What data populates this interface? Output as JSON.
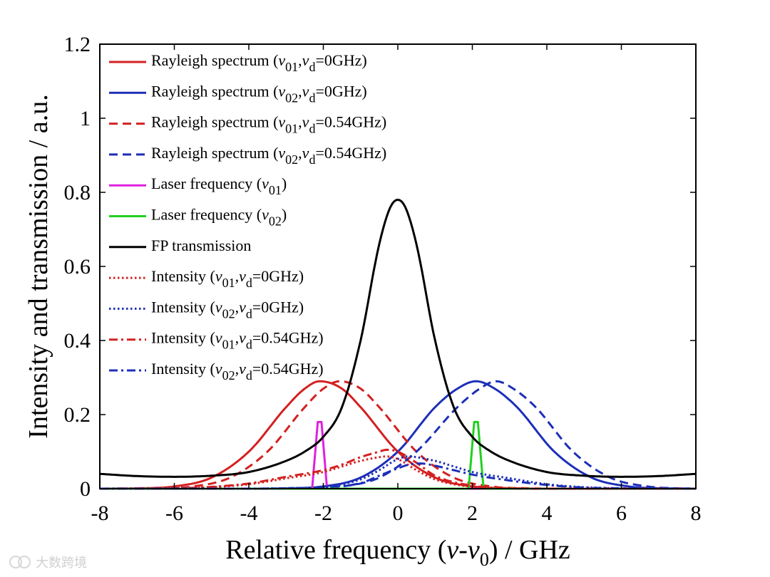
{
  "chart_data": {
    "type": "line",
    "title": "",
    "xlabel": "Relative frequency (ν-ν0) / GHz",
    "xlabel_parts": {
      "main": "Relative frequency (",
      "nu": "ν",
      "dash": "-ν",
      "sub": "0",
      "tail": ") / GHz"
    },
    "ylabel": "Intensity and transmission / a.u.",
    "xlim": [
      -8,
      8
    ],
    "ylim": [
      0,
      1.2
    ],
    "xticks": [
      -8,
      -6,
      -4,
      -2,
      0,
      2,
      4,
      6,
      8
    ],
    "xtick_labels": [
      "-8",
      "-6",
      "-4",
      "-2",
      "0",
      "2",
      "4",
      "6",
      "8"
    ],
    "yticks": [
      0,
      0.2,
      0.4,
      0.6,
      0.8,
      1,
      1.2
    ],
    "ytick_labels": [
      "0",
      "0.2",
      "0.4",
      "0.6",
      "0.8",
      "1",
      "1.2"
    ],
    "grid": false,
    "legend_position": "top-left",
    "series": [
      {
        "name": "Rayleigh spectrum (ν01,νd=0GHz)",
        "color": "#d42020",
        "dash": "solid",
        "points": [
          [
            -8,
            0
          ],
          [
            -7,
            0.001
          ],
          [
            -6,
            0.006
          ],
          [
            -5,
            0.03
          ],
          [
            -4,
            0.1
          ],
          [
            -3,
            0.22
          ],
          [
            -2.5,
            0.27
          ],
          [
            -2.1,
            0.29
          ],
          [
            -1.5,
            0.27
          ],
          [
            -1,
            0.22
          ],
          [
            0,
            0.1
          ],
          [
            1,
            0.03
          ],
          [
            2,
            0.006
          ],
          [
            3,
            0.001
          ],
          [
            4,
            0
          ],
          [
            8,
            0
          ]
        ]
      },
      {
        "name": "Rayleigh spectrum (ν02,νd=0GHz)",
        "color": "#1c2fb8",
        "dash": "solid",
        "points": [
          [
            -8,
            0
          ],
          [
            -4,
            0
          ],
          [
            -3,
            0.001
          ],
          [
            -2,
            0.006
          ],
          [
            -1,
            0.03
          ],
          [
            0,
            0.1
          ],
          [
            1,
            0.22
          ],
          [
            1.6,
            0.27
          ],
          [
            2.1,
            0.29
          ],
          [
            2.6,
            0.27
          ],
          [
            3.2,
            0.22
          ],
          [
            4.2,
            0.1
          ],
          [
            5.2,
            0.03
          ],
          [
            6.2,
            0.006
          ],
          [
            7,
            0.001
          ],
          [
            8,
            0
          ]
        ]
      },
      {
        "name": "Rayleigh spectrum (ν01,νd=0.54GHz)",
        "color": "#d42020",
        "dash": "dashed",
        "points": [
          [
            -8,
            0
          ],
          [
            -6.5,
            0.001
          ],
          [
            -5.5,
            0.006
          ],
          [
            -4.5,
            0.03
          ],
          [
            -3.5,
            0.1
          ],
          [
            -2.5,
            0.22
          ],
          [
            -2,
            0.27
          ],
          [
            -1.56,
            0.29
          ],
          [
            -1,
            0.27
          ],
          [
            -0.5,
            0.22
          ],
          [
            0.5,
            0.1
          ],
          [
            1.5,
            0.03
          ],
          [
            2.5,
            0.006
          ],
          [
            3.5,
            0.001
          ],
          [
            4.5,
            0
          ],
          [
            8,
            0
          ]
        ]
      },
      {
        "name": "Rayleigh spectrum (ν02,νd=0.54GHz)",
        "color": "#1c2fb8",
        "dash": "dashed",
        "points": [
          [
            -8,
            0
          ],
          [
            -3.5,
            0
          ],
          [
            -2.5,
            0.001
          ],
          [
            -1.5,
            0.006
          ],
          [
            -0.5,
            0.03
          ],
          [
            0.5,
            0.1
          ],
          [
            1.6,
            0.22
          ],
          [
            2.2,
            0.27
          ],
          [
            2.64,
            0.29
          ],
          [
            3.1,
            0.27
          ],
          [
            3.7,
            0.22
          ],
          [
            4.7,
            0.1
          ],
          [
            5.7,
            0.03
          ],
          [
            6.7,
            0.006
          ],
          [
            7.5,
            0.001
          ],
          [
            8,
            0
          ]
        ]
      },
      {
        "name": "Laser frequency (ν01)",
        "color": "#e020e0",
        "dash": "solid",
        "points": [
          [
            -8,
            0
          ],
          [
            -2.3,
            0
          ],
          [
            -2.15,
            0.18
          ],
          [
            -2.05,
            0.18
          ],
          [
            -1.9,
            0
          ],
          [
            8,
            0
          ]
        ]
      },
      {
        "name": "Laser frequency (ν02)",
        "color": "#20d020",
        "dash": "solid",
        "points": [
          [
            -8,
            0
          ],
          [
            1.9,
            0
          ],
          [
            2.05,
            0.18
          ],
          [
            2.15,
            0.18
          ],
          [
            2.3,
            0
          ],
          [
            8,
            0
          ]
        ]
      },
      {
        "name": "FP transmission",
        "color": "#000000",
        "dash": "solid",
        "points": [
          [
            -8,
            0.04
          ],
          [
            -7,
            0.034
          ],
          [
            -6,
            0.032
          ],
          [
            -5,
            0.035
          ],
          [
            -4,
            0.045
          ],
          [
            -3,
            0.075
          ],
          [
            -2.5,
            0.1
          ],
          [
            -2,
            0.14
          ],
          [
            -1.5,
            0.22
          ],
          [
            -1,
            0.4
          ],
          [
            -0.5,
            0.66
          ],
          [
            -0.2,
            0.76
          ],
          [
            0,
            0.78
          ],
          [
            0.2,
            0.76
          ],
          [
            0.5,
            0.66
          ],
          [
            1,
            0.4
          ],
          [
            1.5,
            0.22
          ],
          [
            2,
            0.14
          ],
          [
            2.5,
            0.1
          ],
          [
            3,
            0.075
          ],
          [
            4,
            0.045
          ],
          [
            5,
            0.035
          ],
          [
            6,
            0.032
          ],
          [
            7,
            0.034
          ],
          [
            8,
            0.04
          ]
        ]
      },
      {
        "name": "Intensity (ν01,νd=0GHz)",
        "color": "#d42020",
        "dash": "dotted",
        "points": [
          [
            -8,
            0
          ],
          [
            -6,
            0.001
          ],
          [
            -5,
            0.004
          ],
          [
            -4,
            0.012
          ],
          [
            -3,
            0.028
          ],
          [
            -2,
            0.045
          ],
          [
            -1.5,
            0.06
          ],
          [
            -1,
            0.075
          ],
          [
            -0.5,
            0.085
          ],
          [
            -0.3,
            0.087
          ],
          [
            0,
            0.08
          ],
          [
            0.5,
            0.05
          ],
          [
            1,
            0.025
          ],
          [
            2,
            0.005
          ],
          [
            3,
            0.001
          ],
          [
            4,
            0
          ],
          [
            8,
            0
          ]
        ]
      },
      {
        "name": "Intensity (ν02,νd=0GHz)",
        "color": "#1c2fb8",
        "dash": "dotted",
        "points": [
          [
            -8,
            0
          ],
          [
            -4,
            0
          ],
          [
            -3,
            0.001
          ],
          [
            -2,
            0.005
          ],
          [
            -1,
            0.025
          ],
          [
            -0.5,
            0.05
          ],
          [
            0,
            0.08
          ],
          [
            0.3,
            0.087
          ],
          [
            0.5,
            0.085
          ],
          [
            1,
            0.075
          ],
          [
            1.5,
            0.06
          ],
          [
            2,
            0.045
          ],
          [
            3,
            0.028
          ],
          [
            4,
            0.012
          ],
          [
            5,
            0.004
          ],
          [
            6,
            0.001
          ],
          [
            8,
            0
          ]
        ]
      },
      {
        "name": "Intensity (ν01,νd=0.54GHz)",
        "color": "#d42020",
        "dash": "dashdot",
        "points": [
          [
            -8,
            0
          ],
          [
            -6,
            0.001
          ],
          [
            -5,
            0.005
          ],
          [
            -4,
            0.014
          ],
          [
            -3,
            0.032
          ],
          [
            -2,
            0.05
          ],
          [
            -1.5,
            0.065
          ],
          [
            -1,
            0.085
          ],
          [
            -0.5,
            0.1
          ],
          [
            -0.3,
            0.105
          ],
          [
            0,
            0.1
          ],
          [
            0.5,
            0.07
          ],
          [
            1,
            0.035
          ],
          [
            2,
            0.008
          ],
          [
            3,
            0.001
          ],
          [
            4,
            0
          ],
          [
            8,
            0
          ]
        ]
      },
      {
        "name": "Intensity (ν02,νd=0.54GHz)",
        "color": "#1c2fb8",
        "dash": "dashdot",
        "points": [
          [
            -8,
            0
          ],
          [
            -4,
            0
          ],
          [
            -3,
            0.001
          ],
          [
            -2,
            0.004
          ],
          [
            -1,
            0.015
          ],
          [
            -0.5,
            0.035
          ],
          [
            0,
            0.055
          ],
          [
            0.3,
            0.065
          ],
          [
            0.6,
            0.068
          ],
          [
            1,
            0.062
          ],
          [
            1.5,
            0.05
          ],
          [
            2,
            0.038
          ],
          [
            3,
            0.022
          ],
          [
            4,
            0.01
          ],
          [
            5,
            0.003
          ],
          [
            6,
            0.001
          ],
          [
            8,
            0
          ]
        ]
      }
    ]
  },
  "legend": [
    {
      "pre": "Rayleigh spectrum (",
      "a": "01",
      "b": "=0GHz)"
    },
    {
      "pre": "Rayleigh spectrum (",
      "a": "02",
      "b": "=0GHz)"
    },
    {
      "pre": "Rayleigh spectrum (",
      "a": "01",
      "b": "=0.54GHz)"
    },
    {
      "pre": "Rayleigh spectrum (",
      "a": "02",
      "b": "=0.54GHz)"
    },
    {
      "pre": "Laser frequency (",
      "a": "01",
      "close": ")"
    },
    {
      "pre": "Laser frequency (",
      "a": "02",
      "close": ")"
    },
    {
      "plain": "FP transmission"
    },
    {
      "pre": "Intensity (",
      "a": "01",
      "b": "=0GHz)"
    },
    {
      "pre": "Intensity (",
      "a": "02",
      "b": "=0GHz)"
    },
    {
      "pre": "Intensity (",
      "a": "01",
      "b": "=0.54GHz)"
    },
    {
      "pre": "Intensity (",
      "a": "02",
      "b": "=0.54GHz)"
    }
  ],
  "watermark": "大数跨境"
}
